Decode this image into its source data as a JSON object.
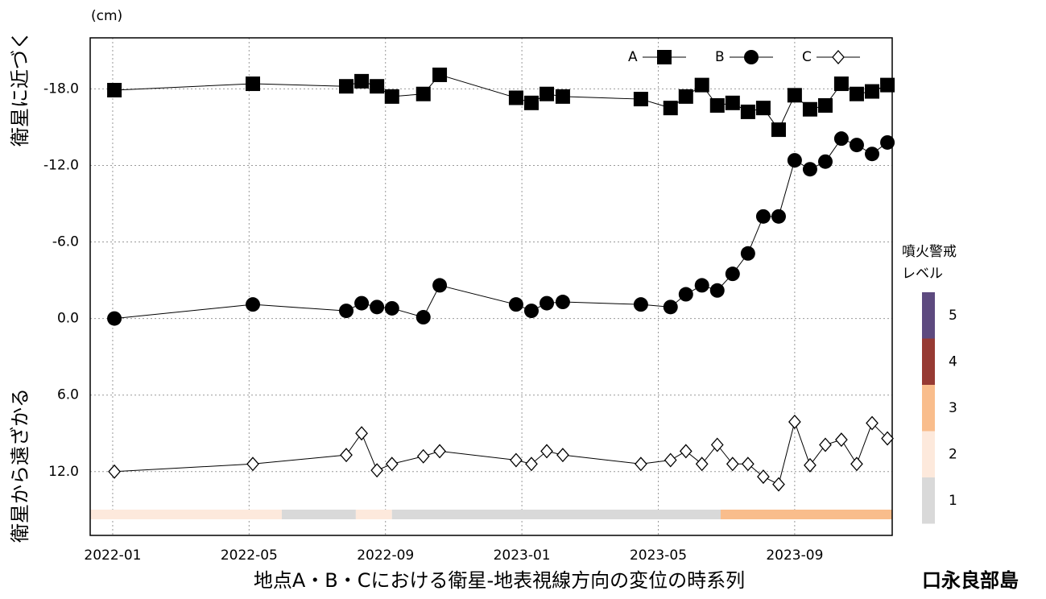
{
  "chart_data": {
    "type": "line",
    "title": "地点A・B・Cにおける衛星-地表視線方向の変位の時系列",
    "unit_label": "(cm)",
    "y_label_top": "衛星に近づく",
    "y_label_bottom": "衛星から遠ざかる",
    "corner_label": "口永良部島",
    "y_inverted": true,
    "ylim": [
      -22,
      17
    ],
    "yticks": [
      {
        "value": -18,
        "label": "-18.0"
      },
      {
        "value": -12,
        "label": "-12.0"
      },
      {
        "value": -6,
        "label": "-6.0"
      },
      {
        "value": 0,
        "label": "0.0"
      },
      {
        "value": 6,
        "label": "6.0"
      },
      {
        "value": 12,
        "label": "12.0"
      }
    ],
    "xlim": [
      -0.66,
      22.86
    ],
    "xticks": [
      {
        "value": 0,
        "label": "2022-01"
      },
      {
        "value": 4,
        "label": "2022-05"
      },
      {
        "value": 8,
        "label": "2022-09"
      },
      {
        "value": 12,
        "label": "2023-01"
      },
      {
        "value": 16,
        "label": "2023-05"
      },
      {
        "value": 20,
        "label": "2023-09"
      }
    ],
    "grid": true,
    "legend": "top-right",
    "x": [
      0.05,
      4.11,
      6.85,
      7.3,
      7.75,
      8.19,
      9.11,
      9.59,
      11.83,
      12.28,
      12.73,
      13.2,
      15.49,
      16.36,
      16.81,
      17.28,
      17.73,
      18.18,
      18.63,
      19.08,
      19.53,
      20.0,
      20.45,
      20.9,
      21.37,
      21.82,
      22.27,
      22.72
    ],
    "series": [
      {
        "name": "A",
        "color": "#000000",
        "marker": "square",
        "values": [
          -17.9,
          -18.4,
          -18.2,
          -18.6,
          -18.2,
          -17.4,
          -17.6,
          -19.1,
          -17.3,
          -16.9,
          -17.6,
          -17.4,
          -17.2,
          -16.5,
          -17.4,
          -18.3,
          -16.7,
          -16.9,
          -16.2,
          -16.5,
          -14.8,
          -17.5,
          -16.4,
          -16.7,
          -18.4,
          -17.6,
          -17.8,
          -18.3
        ]
      },
      {
        "name": "B",
        "color": "#000000",
        "marker": "circle",
        "values": [
          0,
          -1.1,
          -0.6,
          -1.2,
          -0.9,
          -0.8,
          -0.1,
          -2.6,
          -1.1,
          -0.6,
          -1.2,
          -1.3,
          -1.1,
          -0.9,
          -1.9,
          -2.6,
          -2.2,
          -3.5,
          -5.1,
          -8.0,
          -8.0,
          -12.4,
          -11.7,
          -12.3,
          -14.1,
          -13.6,
          -12.9,
          -13.8
        ]
      },
      {
        "name": "C",
        "color": "#000000",
        "marker": "diamond",
        "values": [
          12.0,
          11.4,
          10.7,
          9.0,
          11.9,
          11.4,
          10.8,
          10.4,
          11.1,
          11.4,
          10.4,
          10.7,
          11.4,
          11.1,
          10.4,
          11.4,
          9.9,
          11.4,
          11.4,
          12.4,
          13.0,
          8.1,
          11.5,
          9.9,
          9.5,
          11.4,
          8.2,
          9.4
        ]
      }
    ],
    "alert_legend_title": [
      "噴火警戒",
      "レベル"
    ],
    "alert_legend": [
      {
        "level": 5,
        "color": "#5d4a7f"
      },
      {
        "level": 4,
        "color": "#973a33"
      },
      {
        "level": 3,
        "color": "#f9bd8c"
      },
      {
        "level": 2,
        "color": "#fde9dc"
      },
      {
        "level": 1,
        "color": "#d9d9d9"
      }
    ],
    "alert_levels": [
      {
        "start": -0.66,
        "end": 4.96,
        "level": 2
      },
      {
        "start": 4.96,
        "end": 7.13,
        "level": 1
      },
      {
        "start": 7.13,
        "end": 8.19,
        "level": 2
      },
      {
        "start": 8.19,
        "end": 17.83,
        "level": 1
      },
      {
        "start": 17.83,
        "end": 22.86,
        "level": 3
      }
    ]
  }
}
